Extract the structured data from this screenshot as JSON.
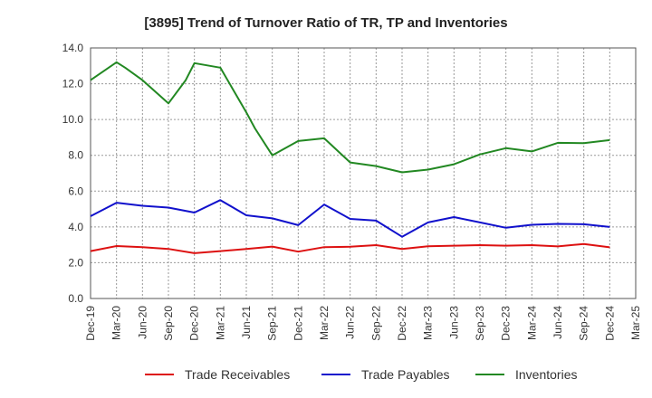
{
  "chart_data": {
    "type": "line",
    "title": "[3895]  Trend of Turnover Ratio of TR, TP and Inventories",
    "xlabel": "",
    "ylabel": "",
    "ylim": [
      0,
      14
    ],
    "yticks": [
      "0.0",
      "2.0",
      "4.0",
      "6.0",
      "8.0",
      "10.0",
      "12.0",
      "14.0"
    ],
    "x_ticks": [
      "Dec-19",
      "Mar-20",
      "Jun-20",
      "Sep-20",
      "Dec-20",
      "Mar-21",
      "Jun-21",
      "Sep-21",
      "Dec-21",
      "Mar-22",
      "Jun-22",
      "Sep-22",
      "Dec-22",
      "Mar-23",
      "Jun-23",
      "Sep-23",
      "Dec-23",
      "Mar-24",
      "Jun-24",
      "Sep-24",
      "Dec-24",
      "Mar-25"
    ],
    "grid": true,
    "legend_position": "bottom",
    "series": [
      {
        "name": "Trade Receivables",
        "color": "#dd1111",
        "x": [
          "Dec-19",
          "Mar-20",
          "Jun-20",
          "Sep-20",
          "Dec-20",
          "Mar-21",
          "Jun-21",
          "Sep-21",
          "Dec-21",
          "Mar-22",
          "Jun-22",
          "Sep-22",
          "Dec-22",
          "Mar-23",
          "Jun-23",
          "Sep-23",
          "Dec-23",
          "Mar-24",
          "Jun-24",
          "Sep-24",
          "Dec-24"
        ],
        "values": [
          2.65,
          2.93,
          2.87,
          2.77,
          2.53,
          2.65,
          2.77,
          2.9,
          2.62,
          2.87,
          2.89,
          2.98,
          2.77,
          2.92,
          2.95,
          2.98,
          2.95,
          2.98,
          2.91,
          3.05,
          2.86
        ]
      },
      {
        "name": "Trade Payables",
        "color": "#1111cc",
        "x": [
          "Dec-19",
          "Mar-20",
          "Jun-20",
          "Sep-20",
          "Dec-20",
          "Mar-21",
          "Jun-21",
          "Sep-21",
          "Dec-21",
          "Mar-22",
          "Jun-22",
          "Sep-22",
          "Dec-22",
          "Mar-23",
          "Jun-23",
          "Sep-23",
          "Dec-23",
          "Mar-24",
          "Jun-24",
          "Sep-24",
          "Dec-24"
        ],
        "values": [
          4.6,
          5.35,
          5.18,
          5.08,
          4.8,
          5.5,
          4.65,
          4.48,
          4.1,
          5.25,
          4.45,
          4.35,
          3.45,
          4.25,
          4.55,
          4.25,
          3.95,
          4.12,
          4.17,
          4.15,
          4.0
        ]
      },
      {
        "name": "Inventories",
        "color": "#228822",
        "x": [
          "Dec-19",
          "Mar-20",
          "Apr-20",
          "Jun-20",
          "Sep-20",
          "Nov-20",
          "Dec-20",
          "Mar-21",
          "Jun-21",
          "Jul-21",
          "Sep-21",
          "Dec-21",
          "Mar-22",
          "Jun-22",
          "Sep-22",
          "Dec-22",
          "Mar-23",
          "Jun-23",
          "Sep-23",
          "Dec-23",
          "Mar-24",
          "Jun-24",
          "Sep-24",
          "Dec-24"
        ],
        "values": [
          12.2,
          13.2,
          12.9,
          12.2,
          10.9,
          12.2,
          13.15,
          12.9,
          10.4,
          9.5,
          8.0,
          8.8,
          8.95,
          7.6,
          7.4,
          7.05,
          7.2,
          7.5,
          8.05,
          8.4,
          8.22,
          8.7,
          8.68,
          8.85
        ]
      }
    ]
  }
}
